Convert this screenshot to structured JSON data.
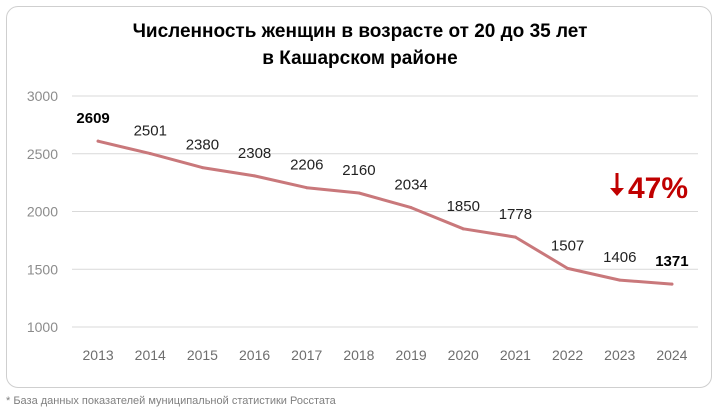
{
  "title_lines": [
    "Численность женщин в возрасте от 20 до 35 лет",
    "в Кашарском районе"
  ],
  "footnote": "* База данных показателей муниципальной статистики Росстата",
  "change_label": "47%",
  "colors": {
    "line": "#c9787b",
    "grid": "#d9d9d9",
    "arrow": "#c00000"
  },
  "chart_data": {
    "type": "line",
    "title": "Численность женщин в возрасте от 20 до 35 лет в Кашарском районе",
    "categories": [
      "2013",
      "2014",
      "2015",
      "2016",
      "2017",
      "2018",
      "2019",
      "2020",
      "2021",
      "2022",
      "2023",
      "2024"
    ],
    "values": [
      2609,
      2501,
      2380,
      2308,
      2206,
      2160,
      2034,
      1850,
      1778,
      1507,
      1406,
      1371
    ],
    "bold_labels": [
      "2013",
      "2024"
    ],
    "ylim": [
      1000,
      3000
    ],
    "yticks": [
      1000,
      1500,
      2000,
      2500,
      3000
    ],
    "grid": true,
    "legend": "none",
    "annotation": {
      "text": "47%",
      "direction": "down"
    }
  }
}
